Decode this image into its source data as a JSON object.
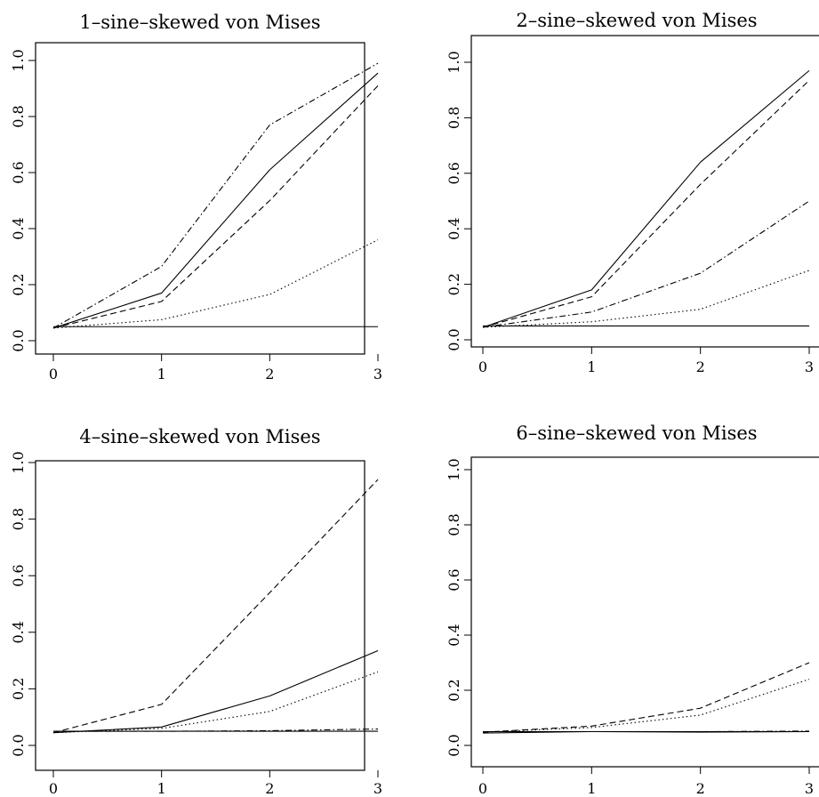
{
  "chart_data": [
    {
      "type": "line",
      "title": "1–sine–skewed von Mises",
      "xlabel": "",
      "ylabel": "",
      "x": [
        0,
        1,
        2,
        3
      ],
      "xticks": [
        "0",
        "1",
        "2",
        "3"
      ],
      "yticks": [
        "0.0",
        "0.2",
        "0.4",
        "0.6",
        "0.8",
        "1.0"
      ],
      "ylim": [
        0,
        1
      ],
      "series": [
        {
          "style": "solid",
          "values": [
            0.05,
            0.05,
            0.05,
            0.05
          ]
        },
        {
          "style": "solid",
          "values": [
            0.045,
            0.17,
            0.61,
            0.955
          ]
        },
        {
          "style": "dashed",
          "values": [
            0.045,
            0.14,
            0.5,
            0.91
          ]
        },
        {
          "style": "dotted",
          "values": [
            0.045,
            0.075,
            0.165,
            0.36
          ]
        },
        {
          "style": "dash-dot",
          "values": [
            0.045,
            0.265,
            0.77,
            0.99
          ]
        }
      ]
    },
    {
      "type": "line",
      "title": "2–sine–skewed von Mises",
      "xlabel": "",
      "ylabel": "",
      "x": [
        0,
        1,
        2,
        3
      ],
      "xticks": [
        "0",
        "1",
        "2",
        "3"
      ],
      "yticks": [
        "0.0",
        "0.2",
        "0.4",
        "0.6",
        "0.8",
        "1.0"
      ],
      "ylim": [
        0,
        1
      ],
      "series": [
        {
          "style": "solid",
          "values": [
            0.05,
            0.05,
            0.05,
            0.05
          ]
        },
        {
          "style": "solid",
          "values": [
            0.045,
            0.18,
            0.64,
            0.97
          ]
        },
        {
          "style": "dashed",
          "values": [
            0.045,
            0.155,
            0.56,
            0.935
          ]
        },
        {
          "style": "dash-dot",
          "values": [
            0.045,
            0.1,
            0.24,
            0.5
          ]
        },
        {
          "style": "dotted",
          "values": [
            0.045,
            0.065,
            0.11,
            0.25
          ]
        }
      ]
    },
    {
      "type": "line",
      "title": "4–sine–skewed von Mises",
      "xlabel": "",
      "ylabel": "",
      "x": [
        0,
        1,
        2,
        3
      ],
      "xticks": [
        "0",
        "1",
        "2",
        "3"
      ],
      "yticks": [
        "0.0",
        "0.2",
        "0.4",
        "0.6",
        "0.8",
        "1.0"
      ],
      "ylim": [
        0,
        1
      ],
      "series": [
        {
          "style": "solid",
          "values": [
            0.05,
            0.05,
            0.05,
            0.05
          ]
        },
        {
          "style": "dashed",
          "values": [
            0.045,
            0.145,
            0.54,
            0.94
          ]
        },
        {
          "style": "solid",
          "values": [
            0.045,
            0.065,
            0.175,
            0.335
          ]
        },
        {
          "style": "dotted",
          "values": [
            0.045,
            0.06,
            0.12,
            0.26
          ]
        },
        {
          "style": "dash-dot",
          "values": [
            0.05,
            0.05,
            0.052,
            0.058
          ]
        }
      ]
    },
    {
      "type": "line",
      "title": "6–sine–skewed von Mises",
      "xlabel": "",
      "ylabel": "",
      "x": [
        0,
        1,
        2,
        3
      ],
      "xticks": [
        "0",
        "1",
        "2",
        "3"
      ],
      "yticks": [
        "0.0",
        "0.2",
        "0.4",
        "0.6",
        "0.8",
        "1.0"
      ],
      "ylim": [
        0,
        1
      ],
      "series": [
        {
          "style": "solid",
          "values": [
            0.05,
            0.05,
            0.05,
            0.05
          ]
        },
        {
          "style": "dashed",
          "values": [
            0.048,
            0.07,
            0.135,
            0.3
          ]
        },
        {
          "style": "dotted",
          "values": [
            0.048,
            0.065,
            0.11,
            0.24
          ]
        },
        {
          "style": "solid",
          "values": [
            0.045,
            0.05,
            0.048,
            0.05
          ]
        },
        {
          "style": "dash-dot",
          "values": [
            0.05,
            0.05,
            0.05,
            0.052
          ]
        }
      ]
    }
  ]
}
